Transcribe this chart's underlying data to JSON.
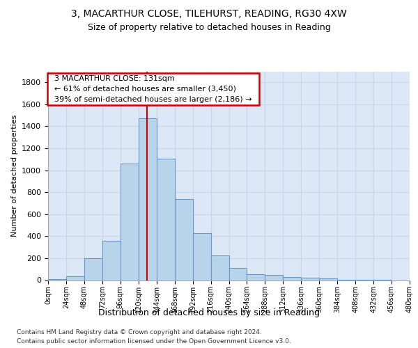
{
  "title_line1": "3, MACARTHUR CLOSE, TILEHURST, READING, RG30 4XW",
  "title_line2": "Size of property relative to detached houses in Reading",
  "xlabel": "Distribution of detached houses by size in Reading",
  "ylabel": "Number of detached properties",
  "bar_edges": [
    0,
    24,
    48,
    72,
    96,
    120,
    144,
    168,
    192,
    216,
    240,
    264,
    288,
    312,
    336,
    360,
    384,
    408,
    432,
    456,
    480
  ],
  "bar_heights": [
    10,
    35,
    200,
    355,
    1060,
    1470,
    1105,
    740,
    430,
    225,
    110,
    55,
    45,
    30,
    20,
    15,
    5,
    2,
    1,
    0
  ],
  "bar_color": "#b8d4eb",
  "bar_edge_color": "#6699cc",
  "property_size": 131,
  "annotation_line1": "3 MACARTHUR CLOSE: 131sqm",
  "annotation_line2": "← 61% of detached houses are smaller (3,450)",
  "annotation_line3": "39% of semi-detached houses are larger (2,186) →",
  "annotation_box_facecolor": "#ffffff",
  "annotation_box_edgecolor": "#cc0000",
  "vline_color": "#cc0000",
  "grid_color": "#c8d4e8",
  "background_color": "#dce8f5",
  "footnote1": "Contains HM Land Registry data © Crown copyright and database right 2024.",
  "footnote2": "Contains public sector information licensed under the Open Government Licence v3.0.",
  "ylim": [
    0,
    1900
  ],
  "yticks": [
    0,
    200,
    400,
    600,
    800,
    1000,
    1200,
    1400,
    1600,
    1800
  ]
}
